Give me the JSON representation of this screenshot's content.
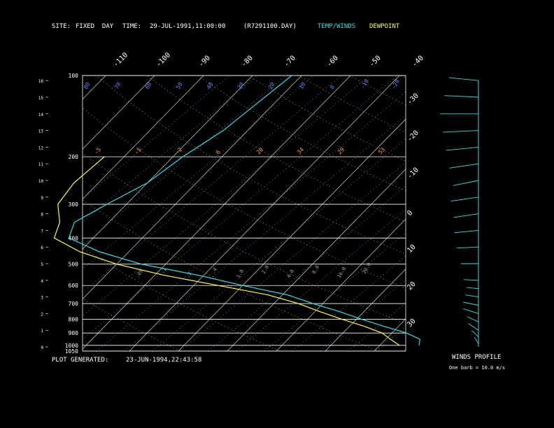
{
  "header": {
    "site_label": "SITE:",
    "site_value": "FIXED  DAY",
    "time_label": "TIME:",
    "time_value": "29-JUL-1991,11:00:00",
    "file_name": "(R7291100.DAY)",
    "temp_legend": "TEMP/WINDS",
    "dew_legend": "DEWPOINT"
  },
  "footer": {
    "generated_label": "PLOT GENERATED:",
    "generated_value": "23-JUN-1994,22:43:58"
  },
  "wind_profile": {
    "title": "WINDS PROFILE",
    "note": "One barb = 10.0 m/s"
  },
  "colors": {
    "temperature": "#33e0e0",
    "dewpoint": "#ffff33",
    "mixing_ratio": "#6688ff",
    "dry_adiabat": "#ff9955",
    "isobar": "#ffffff"
  },
  "chart_data": {
    "type": "line",
    "title": "",
    "xlabel": "",
    "ylabel": "",
    "pressure_levels": [
      100,
      200,
      300,
      400,
      500,
      600,
      700,
      800,
      900,
      1000,
      1050
    ],
    "height_km_ticks": [
      0,
      1,
      2,
      3,
      4,
      5,
      6,
      7,
      8,
      9,
      10,
      11,
      12,
      13,
      14,
      15,
      16
    ],
    "top_temperature_ticks": [
      -110,
      -100,
      -90,
      -80,
      -70,
      -60,
      -50,
      -40
    ],
    "right_temperature_ticks": [
      -30,
      -20,
      -10,
      0,
      10,
      20,
      30
    ],
    "mixing_ratio_labels": [
      ".05",
      ".1",
      ".2",
      ".4",
      "1.0",
      "2.0",
      "4.0",
      "8.0",
      "16.0",
      "20.0"
    ],
    "top_isotherm_labels": [
      "80",
      "70",
      "60",
      "50",
      "40",
      "30",
      "20",
      "10",
      "0",
      "-10",
      "-20"
    ],
    "theta_labels": [
      "-5",
      "-5",
      "-2",
      "6",
      "20",
      "34",
      "29",
      "53"
    ],
    "series": [
      {
        "key": "temperature",
        "x": [
          28,
          27,
          23,
          17,
          11,
          5,
          -2,
          -9,
          -20,
          -31,
          -45,
          -56,
          -65,
          -67,
          -64,
          -60,
          -58,
          -55,
          -52
        ],
        "y": [
          1000,
          950,
          900,
          850,
          800,
          750,
          700,
          650,
          600,
          550,
          500,
          450,
          400,
          350,
          300,
          250,
          200,
          160,
          100
        ]
      },
      {
        "key": "dewpoint",
        "x": [
          24,
          21,
          18,
          13,
          7,
          1,
          -5,
          -13,
          -25,
          -38,
          -50,
          -60,
          -68,
          -70,
          -74,
          -75,
          -74
        ],
        "y": [
          1000,
          950,
          900,
          850,
          800,
          750,
          700,
          650,
          600,
          550,
          500,
          450,
          400,
          350,
          300,
          250,
          200
        ]
      }
    ],
    "winds": {
      "height_km": [
        0.2,
        0.6,
        1.0,
        1.5,
        2.0,
        2.5,
        3.0,
        3.5,
        4.0,
        5.0,
        6.0,
        7.0,
        8.0,
        9.0,
        10.0,
        11.0,
        12.0,
        13.0,
        14.0,
        15.0,
        16.0
      ],
      "speed_ms": [
        5,
        6,
        8,
        7,
        9,
        8,
        6,
        5,
        7,
        9,
        12,
        14,
        15,
        17,
        16,
        18,
        20,
        22,
        24,
        21,
        18
      ],
      "direction_deg": [
        200,
        210,
        220,
        230,
        240,
        250,
        255,
        260,
        265,
        270,
        275,
        280,
        285,
        285,
        290,
        285,
        280,
        275,
        270,
        265,
        260
      ]
    }
  }
}
